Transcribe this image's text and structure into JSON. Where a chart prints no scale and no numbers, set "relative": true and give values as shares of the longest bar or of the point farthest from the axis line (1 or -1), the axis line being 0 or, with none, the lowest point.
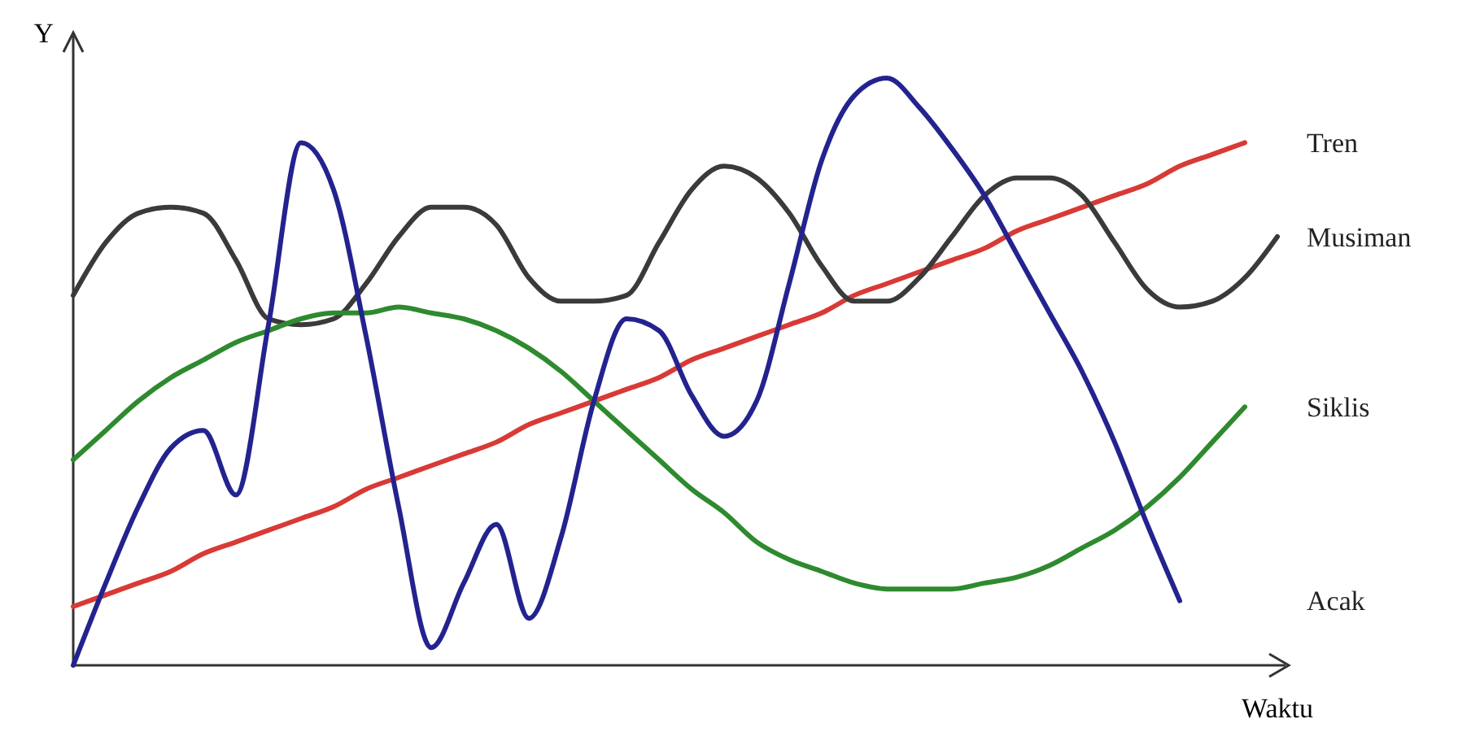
{
  "chart_data": {
    "type": "line",
    "relative": true,
    "xlabel": "Waktu",
    "ylabel": "Y",
    "categories": [
      null,
      null,
      null,
      null,
      null,
      null,
      null,
      null,
      null,
      null,
      null,
      null,
      null,
      null,
      null,
      null,
      null,
      null,
      null,
      null,
      null,
      null,
      null,
      null,
      null,
      null,
      null,
      null,
      null,
      null,
      null,
      null,
      null,
      null,
      null,
      null,
      null,
      null
    ],
    "series": [
      {
        "name": "Tren",
        "color": "#d83a36",
        "values": [
          0.1,
          0.12,
          0.14,
          0.16,
          0.19,
          0.21,
          0.23,
          0.25,
          0.27,
          0.3,
          0.32,
          0.34,
          0.36,
          0.38,
          0.41,
          0.43,
          0.45,
          0.47,
          0.49,
          0.52,
          0.54,
          0.56,
          0.58,
          0.6,
          0.63,
          0.65,
          0.67,
          0.69,
          0.71,
          0.74,
          0.76,
          0.78,
          0.8,
          0.82,
          0.85,
          0.87,
          0.89,
          null
        ]
      },
      {
        "name": "Musiman",
        "color": "#3a3a3a",
        "values": [
          0.63,
          0.72,
          0.77,
          0.78,
          0.77,
          0.69,
          0.59,
          0.58,
          0.59,
          0.65,
          0.73,
          0.78,
          0.78,
          0.75,
          0.66,
          0.62,
          0.62,
          0.63,
          0.72,
          0.81,
          0.85,
          0.83,
          0.77,
          0.68,
          0.62,
          0.62,
          0.66,
          0.73,
          0.8,
          0.83,
          0.83,
          0.8,
          0.72,
          0.64,
          0.61,
          0.62,
          0.66,
          0.73
        ]
      },
      {
        "name": "Siklis",
        "color": "#2e8a2e",
        "values": [
          0.35,
          0.4,
          0.45,
          0.49,
          0.52,
          0.55,
          0.57,
          0.59,
          0.6,
          0.6,
          0.61,
          0.6,
          0.59,
          0.57,
          0.54,
          0.5,
          0.45,
          0.4,
          0.35,
          0.3,
          0.26,
          0.21,
          0.18,
          0.16,
          0.14,
          0.13,
          0.13,
          0.13,
          0.14,
          0.15,
          0.17,
          0.2,
          0.23,
          0.27,
          0.32,
          0.38,
          0.44,
          null
        ]
      },
      {
        "name": "Acak",
        "color": "#23238f",
        "values": [
          0,
          0.14,
          0.27,
          0.37,
          0.4,
          0.29,
          0.58,
          0.89,
          0.81,
          0.56,
          0.27,
          0.03,
          0.14,
          0.24,
          0.08,
          0.22,
          0.45,
          0.59,
          0.57,
          0.46,
          0.39,
          0.45,
          0.65,
          0.86,
          0.97,
          1,
          0.95,
          0.88,
          0.8,
          0.7,
          0.6,
          0.5,
          0.38,
          0.24,
          0.11,
          null,
          null,
          null
        ]
      }
    ]
  }
}
